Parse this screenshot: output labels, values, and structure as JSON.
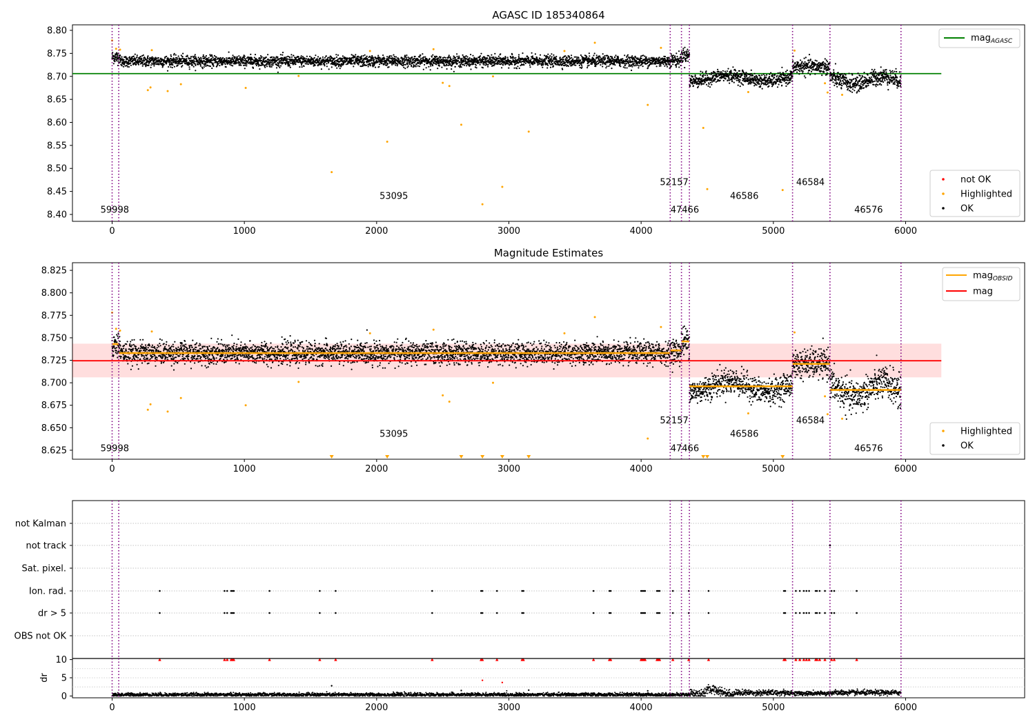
{
  "chart_data": [
    {
      "type": "scatter",
      "title": "AGASC ID 185340864",
      "xlim": [
        -300,
        6900
      ],
      "ylim": [
        8.385,
        8.812
      ],
      "xticks": [
        0,
        1000,
        2000,
        3000,
        4000,
        5000,
        6000
      ],
      "yticks": [
        8.4,
        8.45,
        8.5,
        8.55,
        8.6,
        8.65,
        8.7,
        8.75,
        8.8
      ],
      "ytick_labels": [
        "8.40",
        "8.45",
        "8.50",
        "8.55",
        "8.60",
        "8.65",
        "8.70",
        "8.75",
        "8.80"
      ],
      "obs_boundaries": [
        0,
        50,
        4220,
        4305,
        4365,
        5145,
        5428,
        5965
      ],
      "obsid_labels": [
        {
          "text": "59998",
          "x": 20,
          "y": 8.404
        },
        {
          "text": "53095",
          "x": 2130,
          "y": 8.434
        },
        {
          "text": "52157",
          "x": 4250,
          "y": 8.464
        },
        {
          "text": "47466",
          "x": 4330,
          "y": 8.404
        },
        {
          "text": "46586",
          "x": 4780,
          "y": 8.434
        },
        {
          "text": "46584",
          "x": 5280,
          "y": 8.464
        },
        {
          "text": "46576",
          "x": 5720,
          "y": 8.404
        }
      ],
      "hline": {
        "name": "mag_AGASC",
        "y": 8.706,
        "x_range": [
          -300,
          6270
        ],
        "color": "#008000"
      },
      "segments": [
        {
          "start": 0,
          "end": 60,
          "level": 8.742,
          "noise": 0.007
        },
        {
          "start": 60,
          "end": 4220,
          "level": 8.733,
          "noise": 0.006
        },
        {
          "start": 4220,
          "end": 4305,
          "level": 8.735,
          "noise": 0.007
        },
        {
          "start": 4305,
          "end": 4365,
          "level": 8.746,
          "noise": 0.008
        },
        {
          "start": 4365,
          "end": 5145,
          "level": 8.696,
          "noise": 0.007
        },
        {
          "start": 5145,
          "end": 5428,
          "level": 8.721,
          "noise": 0.008
        },
        {
          "start": 5428,
          "end": 5965,
          "level": 8.692,
          "noise": 0.009
        }
      ],
      "highlighted_points": [
        [
          0,
          8.778
        ],
        [
          30,
          8.76
        ],
        [
          60,
          8.758
        ],
        [
          270,
          8.67
        ],
        [
          290,
          8.676
        ],
        [
          300,
          8.757
        ],
        [
          420,
          8.668
        ],
        [
          520,
          8.683
        ],
        [
          1010,
          8.675
        ],
        [
          1410,
          8.701
        ],
        [
          1660,
          8.492
        ],
        [
          2080,
          8.558
        ],
        [
          2500,
          8.686
        ],
        [
          2550,
          8.679
        ],
        [
          2640,
          8.595
        ],
        [
          2800,
          8.422
        ],
        [
          2880,
          8.7
        ],
        [
          2950,
          8.46
        ],
        [
          3150,
          8.58
        ],
        [
          3650,
          8.773
        ],
        [
          4050,
          8.638
        ],
        [
          4150,
          8.762
        ],
        [
          4470,
          8.588
        ],
        [
          4500,
          8.455
        ],
        [
          4810,
          8.666
        ],
        [
          5070,
          8.453
        ],
        [
          5160,
          8.756
        ],
        [
          5390,
          8.685
        ],
        [
          5410,
          8.665
        ],
        [
          5520,
          8.66
        ],
        [
          1950,
          8.755
        ],
        [
          2430,
          8.759
        ],
        [
          3420,
          8.755
        ]
      ],
      "legend_lines": [
        {
          "label": "mag",
          "sub": "AGASC",
          "color": "#008000"
        }
      ],
      "legend_points": [
        {
          "label": "not OK",
          "color": "#ff0000"
        },
        {
          "label": "Highlighted",
          "color": "#ffa500"
        },
        {
          "label": "OK",
          "color": "#000000"
        }
      ]
    },
    {
      "type": "scatter",
      "title": "Magnitude Estimates",
      "xlim": [
        -300,
        6900
      ],
      "ylim": [
        8.615,
        8.8335
      ],
      "xticks": [
        0,
        1000,
        2000,
        3000,
        4000,
        5000,
        6000
      ],
      "yticks": [
        8.625,
        8.65,
        8.675,
        8.7,
        8.725,
        8.75,
        8.775,
        8.8,
        8.825
      ],
      "ytick_labels": [
        "8.625",
        "8.650",
        "8.675",
        "8.700",
        "8.725",
        "8.750",
        "8.775",
        "8.800",
        "8.825"
      ],
      "obsid_labels": [
        {
          "text": "59998",
          "x": 20,
          "y": 8.624
        },
        {
          "text": "53095",
          "x": 2130,
          "y": 8.64
        },
        {
          "text": "52157",
          "x": 4250,
          "y": 8.655
        },
        {
          "text": "47466",
          "x": 4330,
          "y": 8.624
        },
        {
          "text": "46586",
          "x": 4780,
          "y": 8.64
        },
        {
          "text": "46584",
          "x": 5280,
          "y": 8.655
        },
        {
          "text": "46576",
          "x": 5720,
          "y": 8.624
        }
      ],
      "mag": {
        "name": "mag",
        "y": 8.7245,
        "band": [
          8.706,
          8.7435
        ],
        "x_range": [
          -300,
          6270
        ],
        "color": "#ff0000"
      },
      "mag_obsid": [
        {
          "x": [
            0,
            50
          ],
          "y": 8.743
        },
        {
          "x": [
            50,
            4220
          ],
          "y": 8.733
        },
        {
          "x": [
            4220,
            4305
          ],
          "y": 8.736
        },
        {
          "x": [
            4305,
            4365
          ],
          "y": 8.746
        },
        {
          "x": [
            4365,
            5145
          ],
          "y": 8.696
        },
        {
          "x": [
            5145,
            5428
          ],
          "y": 8.721
        },
        {
          "x": [
            5428,
            5965
          ],
          "y": 8.692
        }
      ],
      "off_scale_markers": [
        1660,
        2080,
        2640,
        2800,
        2950,
        3150,
        4470,
        4500,
        5070
      ],
      "legend_lines": [
        {
          "label": "mag",
          "sub": "OBSID",
          "color": "#ffa500"
        },
        {
          "label": "mag",
          "sub": "",
          "color": "#ff0000"
        }
      ],
      "legend_points": [
        {
          "label": "Highlighted",
          "color": "#ffa500"
        },
        {
          "label": "OK",
          "color": "#000000"
        }
      ]
    },
    {
      "type": "scatter",
      "title": "",
      "flag_labels": [
        "not Kalman",
        "not track",
        "Sat. pixel.",
        "Ion. rad.",
        "dr > 5",
        "OBS not OK"
      ],
      "flag_points": {
        "not track": [
          5428
        ],
        "Ion. rad.": [
          360,
          850,
          870,
          900,
          910,
          920,
          1190,
          1570,
          1690,
          2420,
          2790,
          2800,
          2910,
          3100,
          3110,
          3640,
          3760,
          3770,
          4000,
          4010,
          4020,
          4030,
          4120,
          4130,
          4140,
          4240,
          4360,
          4510,
          5080,
          5090,
          5170,
          5200,
          5230,
          5250,
          5270,
          5320,
          5330,
          5350,
          5390,
          5440,
          5460,
          5630
        ],
        "dr > 5": [
          360,
          850,
          870,
          900,
          910,
          920,
          1190,
          1570,
          1690,
          2420,
          2790,
          2800,
          2910,
          3100,
          3110,
          3640,
          3760,
          3770,
          4000,
          4010,
          4020,
          4030,
          4120,
          4130,
          4140,
          4240,
          4360,
          4510,
          5080,
          5090,
          5170,
          5200,
          5230,
          5250,
          5270,
          5320,
          5330,
          5350,
          5390,
          5440,
          5460,
          5630
        ]
      },
      "dr_ylabel": "dr",
      "dr_ylim": [
        -0.5,
        10.3
      ],
      "dr_yticks": [
        0,
        5,
        10
      ],
      "dr_ytick_labels": [
        "0",
        "5",
        "10"
      ],
      "dr_capped_x": [
        360,
        850,
        870,
        900,
        910,
        920,
        1190,
        1570,
        1690,
        2420,
        2790,
        2800,
        2910,
        3100,
        3110,
        3640,
        3760,
        3770,
        4000,
        4010,
        4020,
        4030,
        4120,
        4130,
        4140,
        4240,
        4360,
        4510,
        5080,
        5090,
        5170,
        5200,
        5230,
        5250,
        5270,
        5320,
        5330,
        5350,
        5390,
        5440,
        5460,
        5630
      ],
      "dr_outliers": [
        [
          1660,
          2.8
        ],
        [
          2800,
          4.3
        ],
        [
          2950,
          3.7
        ],
        [
          2640,
          1.5
        ],
        [
          4050,
          1.4
        ],
        [
          3150,
          1.6
        ]
      ],
      "dr_segments": [
        {
          "start": 0,
          "end": 4365,
          "level": 0.35,
          "noise": 0.25
        },
        {
          "start": 4365,
          "end": 4700,
          "level": 1.4,
          "noise": 0.6
        },
        {
          "start": 4700,
          "end": 5145,
          "level": 0.9,
          "noise": 0.4
        },
        {
          "start": 5145,
          "end": 5428,
          "level": 0.7,
          "noise": 0.3
        },
        {
          "start": 5428,
          "end": 5965,
          "level": 0.9,
          "noise": 0.35
        }
      ]
    }
  ]
}
